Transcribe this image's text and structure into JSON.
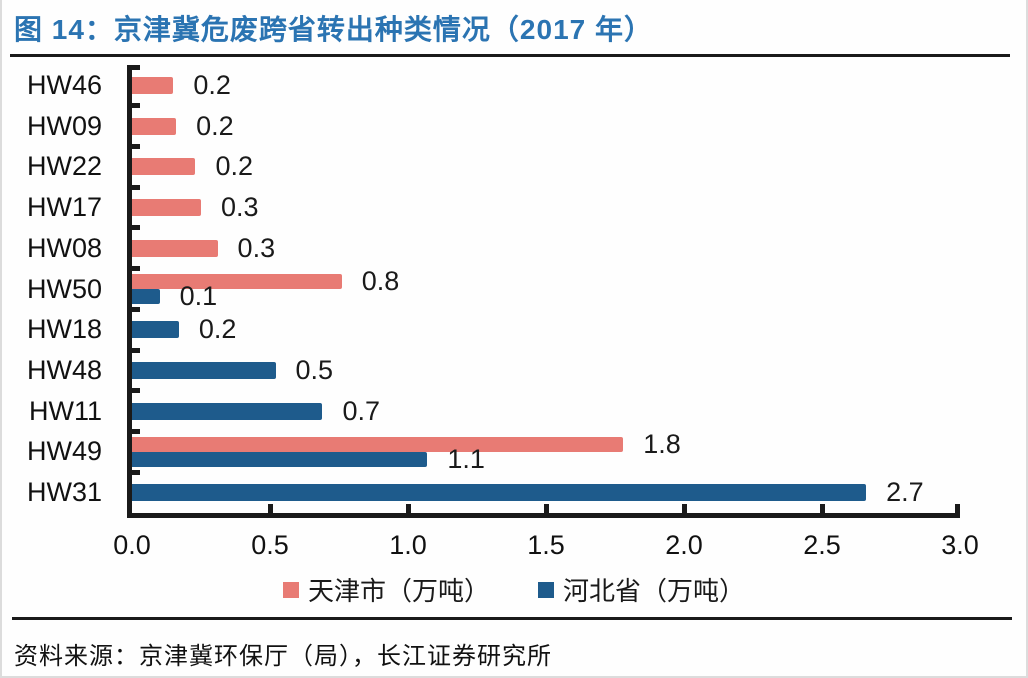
{
  "header": {
    "title": "图 14：京津冀危废跨省转出种类情况（2017 年）"
  },
  "chart_data": {
    "type": "bar",
    "orientation": "horizontal",
    "title": "京津冀危废跨省转出种类情况（2017年）",
    "categories": [
      "HW46",
      "HW09",
      "HW22",
      "HW17",
      "HW08",
      "HW50",
      "HW18",
      "HW48",
      "HW11",
      "HW49",
      "HW31"
    ],
    "series": [
      {
        "name": "天津市（万吨）",
        "color": "#e87b74",
        "values": [
          0.2,
          0.2,
          0.2,
          0.3,
          0.3,
          0.8,
          null,
          null,
          null,
          1.8,
          null
        ],
        "labels": [
          "0.2",
          "0.2",
          "0.2",
          "0.3",
          "0.3",
          "0.8",
          null,
          null,
          null,
          "1.8",
          null
        ],
        "bar_values": [
          0.15,
          0.16,
          0.23,
          0.25,
          0.31,
          0.76,
          null,
          null,
          null,
          1.78,
          null
        ]
      },
      {
        "name": "河北省（万吨）",
        "color": "#1e5b8c",
        "values": [
          null,
          null,
          null,
          null,
          null,
          0.1,
          0.2,
          0.5,
          0.7,
          1.1,
          2.7
        ],
        "labels": [
          null,
          null,
          null,
          null,
          null,
          "0.1",
          "0.2",
          "0.5",
          "0.7",
          "1.1",
          "2.7"
        ],
        "bar_values": [
          null,
          null,
          null,
          null,
          null,
          0.1,
          0.17,
          0.52,
          0.69,
          1.07,
          2.66
        ]
      }
    ],
    "xlim": [
      0,
      3
    ],
    "x_ticks": [
      "0.0",
      "0.5",
      "1.0",
      "1.5",
      "2.0",
      "2.5",
      "3.0"
    ],
    "grid": false,
    "legend_position": "bottom",
    "value_labels_shown": true
  },
  "legend": {
    "items": [
      {
        "label": "天津市（万吨）",
        "color": "#e87b74"
      },
      {
        "label": "河北省（万吨）",
        "color": "#1e5b8c"
      }
    ]
  },
  "footer": {
    "source": "资料来源：京津冀环保厅（局），长江证券研究所"
  },
  "colors": {
    "title_blue": "#2b74b2",
    "axis_black": "#1a1a1a",
    "tianjin_pink": "#e87b74",
    "hebei_blue": "#1e5b8c"
  }
}
